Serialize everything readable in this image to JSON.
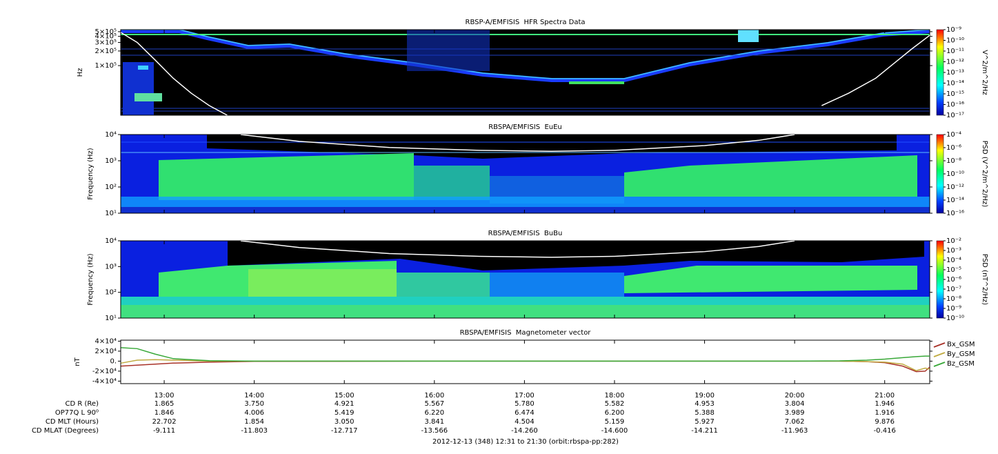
{
  "chart_data": [
    {
      "type": "spectrogram",
      "title": "RBSP-A/EMFISIS  HFR Spectra Data",
      "ylabel": "Hz",
      "ylog": true,
      "ylim": [
        9500,
        550000
      ],
      "yticks": [
        {
          "value": 500000,
          "label": "5×10⁵"
        },
        {
          "value": 400000,
          "label": "4×10⁵"
        },
        {
          "value": 300000,
          "label": "3×10⁵"
        },
        {
          "value": 200000,
          "label": "2×10⁵"
        },
        {
          "value": 100000,
          "label": "1×10⁵"
        }
      ],
      "xlim": [
        12.517,
        21.5
      ],
      "xticks": [
        13,
        14,
        15,
        16,
        17,
        18,
        19,
        20,
        21
      ],
      "zlabel": "V^2/m^2/Hz",
      "zlog": true,
      "zlim": [
        1e-17,
        1e-09
      ],
      "zticks": [
        {
          "value": 1e-09,
          "label": "10⁻⁹"
        },
        {
          "value": 1e-10,
          "label": "10⁻¹⁰"
        },
        {
          "value": 1e-11,
          "label": "10⁻¹¹"
        },
        {
          "value": 1e-12,
          "label": "10⁻¹²"
        },
        {
          "value": 1e-13,
          "label": "10⁻¹³"
        },
        {
          "value": 1e-14,
          "label": "10⁻¹⁴"
        },
        {
          "value": 1e-15,
          "label": "10⁻¹⁵"
        },
        {
          "value": 1e-16,
          "label": "10⁻¹⁶"
        },
        {
          "value": 1e-17,
          "label": "10⁻¹⁷"
        }
      ],
      "series": [
        {
          "color": "#ffffff",
          "x": [
            12.52,
            12.7,
            12.9,
            13.1,
            13.3,
            13.5,
            13.7,
            20.0,
            20.3,
            20.6,
            20.9,
            21.1,
            21.3,
            21.5
          ],
          "values": [
            480000,
            300000,
            130000,
            55000,
            27000,
            15000,
            9500,
            null,
            15000,
            27000,
            55000,
            110000,
            220000,
            420000
          ]
        }
      ]
    },
    {
      "type": "spectrogram",
      "title": "RBSPA/EMFISIS  EuEu",
      "ylabel": "Frequency (Hz)",
      "ylog": true,
      "ylim": [
        10,
        10000
      ],
      "yticks": [
        {
          "value": 10000,
          "label": "10⁴"
        },
        {
          "value": 1000,
          "label": "10³"
        },
        {
          "value": 100,
          "label": "10²"
        },
        {
          "value": 10,
          "label": "10¹"
        }
      ],
      "xlim": [
        12.517,
        21.5
      ],
      "xticks": [
        13,
        14,
        15,
        16,
        17,
        18,
        19,
        20,
        21
      ],
      "zlabel": "PSD (V^2/m^2/Hz)",
      "zlog": true,
      "zlim": [
        1e-16,
        0.0001
      ],
      "zticks": [
        {
          "value": 0.0001,
          "label": "10⁻⁴"
        },
        {
          "value": 1e-06,
          "label": "10⁻⁶"
        },
        {
          "value": 1e-08,
          "label": "10⁻⁸"
        },
        {
          "value": 1e-10,
          "label": "10⁻¹⁰"
        },
        {
          "value": 1e-12,
          "label": "10⁻¹²"
        },
        {
          "value": 1e-14,
          "label": "10⁻¹⁴"
        },
        {
          "value": 1e-16,
          "label": "10⁻¹⁶"
        }
      ],
      "series": [
        {
          "color": "#ffffff",
          "x": [
            13.85,
            14.5,
            15.5,
            16.5,
            17.3,
            18.0,
            19.0,
            19.6,
            20.0
          ],
          "values": [
            10000,
            5500,
            3200,
            2500,
            2300,
            2500,
            3800,
            6000,
            10000
          ]
        }
      ]
    },
    {
      "type": "spectrogram",
      "title": "RBSPA/EMFISIS  BuBu",
      "ylabel": "Frequency (Hz)",
      "ylog": true,
      "ylim": [
        10,
        10000
      ],
      "yticks": [
        {
          "value": 10000,
          "label": "10⁴"
        },
        {
          "value": 1000,
          "label": "10³"
        },
        {
          "value": 100,
          "label": "10²"
        },
        {
          "value": 10,
          "label": "10¹"
        }
      ],
      "xlim": [
        12.517,
        21.5
      ],
      "xticks": [
        13,
        14,
        15,
        16,
        17,
        18,
        19,
        20,
        21
      ],
      "zlabel": "PSD (nT^2/Hz)",
      "zlog": true,
      "zlim": [
        1e-10,
        0.01
      ],
      "zticks": [
        {
          "value": 0.01,
          "label": "10⁻²"
        },
        {
          "value": 0.001,
          "label": "10⁻³"
        },
        {
          "value": 0.0001,
          "label": "10⁻⁴"
        },
        {
          "value": 1e-05,
          "label": "10⁻⁵"
        },
        {
          "value": 1e-06,
          "label": "10⁻⁶"
        },
        {
          "value": 1e-07,
          "label": "10⁻⁷"
        },
        {
          "value": 1e-08,
          "label": "10⁻⁸"
        },
        {
          "value": 1e-09,
          "label": "10⁻⁹"
        },
        {
          "value": 1e-10,
          "label": "10⁻¹⁰"
        }
      ],
      "series": [
        {
          "color": "#ffffff",
          "x": [
            13.85,
            14.5,
            15.5,
            16.5,
            17.3,
            18.0,
            19.0,
            19.6,
            20.0
          ],
          "values": [
            10000,
            5500,
            3200,
            2500,
            2300,
            2500,
            3800,
            6000,
            10000
          ]
        }
      ]
    },
    {
      "type": "line",
      "title": "RBSPA/EMFISIS  Magnetometer vector",
      "ylabel": "nT",
      "ylog": false,
      "ylim": [
        -45000,
        42000
      ],
      "yticks": [
        {
          "value": 40000,
          "label": "4×10⁴"
        },
        {
          "value": 20000,
          "label": "2×10⁴"
        },
        {
          "value": 0,
          "label": "0."
        },
        {
          "value": -20000,
          "label": "-2×10⁴"
        },
        {
          "value": -40000,
          "label": "-4×10⁴"
        }
      ],
      "xlim": [
        12.517,
        21.5
      ],
      "xticks": [
        {
          "value": 13,
          "label": "13:00"
        },
        {
          "value": 14,
          "label": "14:00"
        },
        {
          "value": 15,
          "label": "15:00"
        },
        {
          "value": 16,
          "label": "16:00"
        },
        {
          "value": 17,
          "label": "17:00"
        },
        {
          "value": 18,
          "label": "18:00"
        },
        {
          "value": 19,
          "label": "19:00"
        },
        {
          "value": 20,
          "label": "20:00"
        },
        {
          "value": 21,
          "label": "21:00"
        }
      ],
      "legend": "outside-right",
      "x": [
        12.52,
        12.7,
        12.9,
        13.1,
        13.5,
        14,
        16,
        18,
        20,
        20.5,
        20.8,
        21,
        21.2,
        21.35,
        21.45,
        21.5
      ],
      "series": [
        {
          "name": "Bx_GSM",
          "color": "#a83228",
          "values": [
            -10000,
            -8000,
            -6000,
            -4000,
            -2000,
            -500,
            0,
            0,
            0,
            0,
            -1000,
            -3000,
            -10000,
            -21000,
            -20000,
            -12000
          ]
        },
        {
          "name": "By_GSM",
          "color": "#c0aa40",
          "values": [
            -4000,
            2000,
            3000,
            2000,
            0,
            0,
            0,
            0,
            0,
            0,
            -1000,
            -2000,
            -6000,
            -19000,
            -14000,
            -16000
          ]
        },
        {
          "name": "Bz_GSM",
          "color": "#38a838",
          "values": [
            27000,
            25000,
            14000,
            5000,
            1000,
            0,
            0,
            0,
            0,
            500,
            2000,
            4000,
            7000,
            9000,
            10000,
            10000
          ]
        }
      ]
    }
  ],
  "ephemeris": {
    "rows": [
      {
        "label": "CD R (Re)",
        "values": [
          "1.865",
          "3.750",
          "4.921",
          "5.567",
          "5.780",
          "5.582",
          "4.953",
          "3.804",
          "1.946"
        ]
      },
      {
        "label": "OP77Q L 90⁰",
        "values": [
          "1.846",
          "4.006",
          "5.419",
          "6.220",
          "6.474",
          "6.200",
          "5.388",
          "3.989",
          "1.916"
        ]
      },
      {
        "label": "CD MLT (Hours)",
        "values": [
          "22.702",
          "1.854",
          "3.050",
          "3.841",
          "4.504",
          "5.159",
          "5.927",
          "7.062",
          "9.876"
        ]
      },
      {
        "label": "CD MLAT (Degrees)",
        "values": [
          "-9.111",
          "-11.803",
          "-12.717",
          "-13.566",
          "-14.260",
          "-14.600",
          "-14.211",
          "-11.963",
          "-0.416"
        ]
      }
    ]
  },
  "caption": "2012-12-13 (348) 12:31 to 21:30 (orbit:rbspa-pp:282)"
}
